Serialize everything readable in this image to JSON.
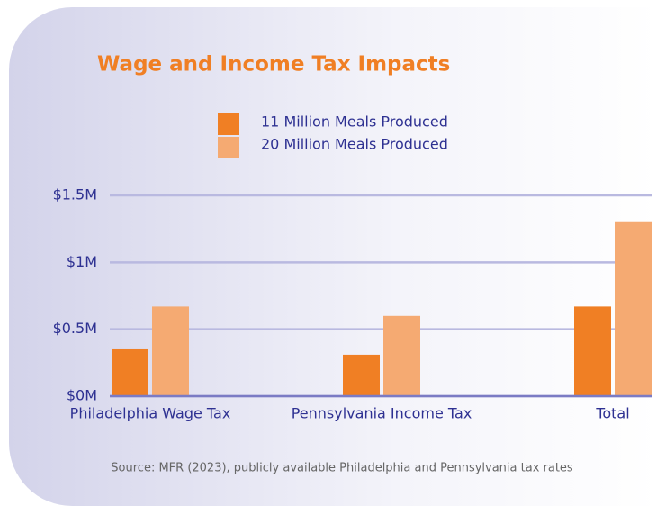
{
  "chart_data": {
    "type": "bar",
    "title": "Wage and Income Tax Impacts",
    "categories": [
      "Philadelphia Wage Tax",
      "Pennsylvania Income Tax",
      "Total"
    ],
    "series": [
      {
        "name": "11 Million Meals Produced",
        "color": "#f07f24",
        "values": [
          350000,
          310000,
          670000
        ]
      },
      {
        "name": "20 Million Meals Produced",
        "color": "#f5aa72",
        "values": [
          670000,
          600000,
          1300000
        ]
      }
    ],
    "ylim": [
      0,
      1500000
    ],
    "yticks": [
      {
        "value": 0,
        "label": "$0M"
      },
      {
        "value": 500000,
        "label": "$0.5M"
      },
      {
        "value": 1000000,
        "label": "$1M"
      },
      {
        "value": 1500000,
        "label": "$1.5M"
      }
    ],
    "grid": true,
    "source": "Source: MFR (2023), publicly available Philadelphia and Pennsylvania tax rates"
  }
}
